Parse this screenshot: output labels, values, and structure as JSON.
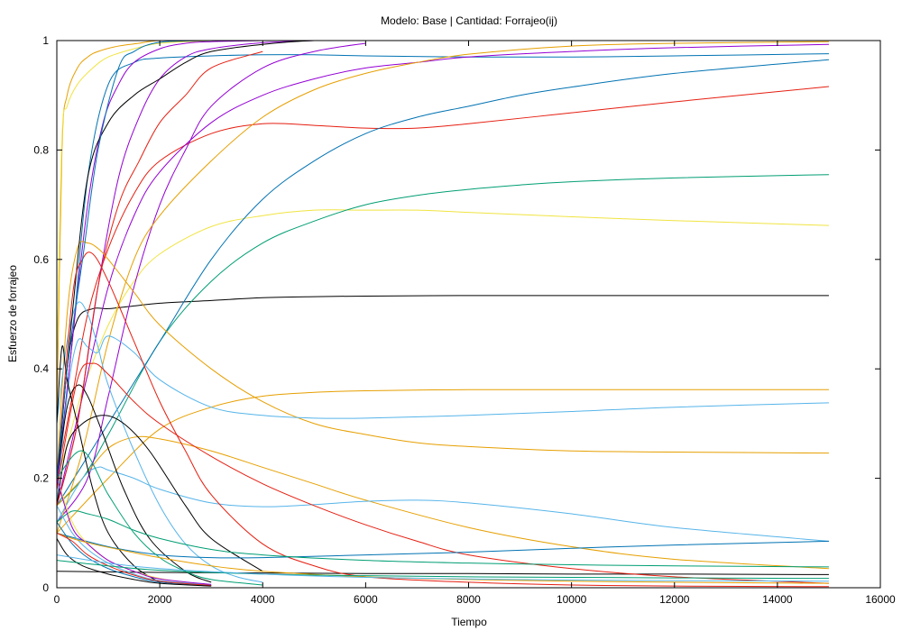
{
  "chart_data": {
    "type": "line",
    "title": "Modelo: Base | Cantidad: Forrajeo(ij)",
    "xlabel": "Tiempo",
    "ylabel": "Esfuerzo de forrajeo",
    "xlim": [
      0,
      16000
    ],
    "ylim": [
      0,
      1
    ],
    "xticks": [
      0,
      2000,
      4000,
      6000,
      8000,
      10000,
      12000,
      14000,
      16000
    ],
    "xtick_labels": [
      "0",
      "2000",
      "4000",
      "6000",
      "8000",
      "10000",
      "12000",
      "14000",
      "16000"
    ],
    "yticks": [
      0,
      0.2,
      0.4,
      0.6,
      0.8,
      1
    ],
    "ytick_labels": [
      "0",
      "0.2",
      "0.4",
      "0.6",
      "0.8",
      "1"
    ],
    "grid": false,
    "legend": "none",
    "palette": [
      "#9400d3",
      "#009e73",
      "#56b4e9",
      "#e69f00",
      "#f0e442",
      "#0072b2",
      "#e51e10",
      "#000000"
    ],
    "series": [
      {
        "color": "#000000",
        "x": [
          0,
          200,
          400,
          700,
          1000,
          1500,
          2000,
          3000,
          4000,
          5000,
          6000,
          8000,
          10000,
          12000,
          15000
        ],
        "y": [
          0.18,
          0.4,
          0.49,
          0.51,
          0.51,
          0.515,
          0.52,
          0.525,
          0.53,
          0.532,
          0.533,
          0.534,
          0.534,
          0.534,
          0.534
        ]
      },
      {
        "color": "#f0e442",
        "x": [
          0,
          200,
          500,
          1000,
          1500,
          2000,
          3000,
          4000,
          5000,
          6000,
          7000,
          8000,
          10000,
          12000,
          15000
        ],
        "y": [
          0.2,
          0.26,
          0.36,
          0.48,
          0.56,
          0.61,
          0.66,
          0.68,
          0.69,
          0.69,
          0.69,
          0.686,
          0.678,
          0.671,
          0.662
        ]
      },
      {
        "color": "#009e73",
        "x": [
          0,
          500,
          1000,
          2000,
          3000,
          4000,
          5000,
          6000,
          7000,
          8000,
          9000,
          10000,
          12000,
          15000
        ],
        "y": [
          0.15,
          0.2,
          0.28,
          0.45,
          0.56,
          0.63,
          0.67,
          0.7,
          0.717,
          0.728,
          0.736,
          0.742,
          0.749,
          0.755
        ]
      },
      {
        "color": "#e51e10",
        "x": [
          0,
          300,
          600,
          1000,
          1500,
          2000,
          3000,
          4000,
          5000,
          6000,
          7000,
          8000,
          10000,
          12000,
          15000
        ],
        "y": [
          0.2,
          0.35,
          0.5,
          0.62,
          0.72,
          0.78,
          0.83,
          0.848,
          0.845,
          0.84,
          0.84,
          0.848,
          0.868,
          0.888,
          0.916
        ]
      },
      {
        "color": "#0072b2",
        "x": [
          0,
          1000,
          2000,
          3000,
          4000,
          5000,
          6000,
          7000,
          8000,
          9000,
          10000,
          12000,
          15000
        ],
        "y": [
          0.15,
          0.3,
          0.45,
          0.6,
          0.71,
          0.78,
          0.83,
          0.86,
          0.88,
          0.9,
          0.915,
          0.94,
          0.965
        ]
      },
      {
        "color": "#0072b2",
        "x": [
          0,
          300,
          600,
          1000,
          1500,
          2000,
          3000,
          4000,
          5000,
          6000,
          8000,
          10000,
          12000,
          15000
        ],
        "y": [
          0.2,
          0.45,
          0.75,
          0.92,
          0.96,
          0.968,
          0.972,
          0.974,
          0.974,
          0.972,
          0.97,
          0.97,
          0.972,
          0.976
        ]
      },
      {
        "color": "#9400d3",
        "x": [
          0,
          500,
          1000,
          1500,
          2000,
          3000,
          4000,
          5000,
          6000,
          7000,
          8000,
          10000,
          12000,
          15000
        ],
        "y": [
          0.15,
          0.35,
          0.55,
          0.68,
          0.76,
          0.85,
          0.9,
          0.93,
          0.95,
          0.96,
          0.97,
          0.98,
          0.987,
          0.993
        ]
      },
      {
        "color": "#9400d3",
        "x": [
          0,
          600,
          1000,
          1500,
          2000,
          2500,
          3000,
          4000,
          5000,
          6000
        ],
        "y": [
          0.12,
          0.2,
          0.35,
          0.55,
          0.7,
          0.8,
          0.88,
          0.95,
          0.98,
          0.995
        ]
      },
      {
        "color": "#9400d3",
        "x": [
          0,
          400,
          800,
          1200,
          1600,
          2000,
          2500,
          3000,
          4000,
          5000
        ],
        "y": [
          0.15,
          0.3,
          0.55,
          0.75,
          0.86,
          0.93,
          0.97,
          0.985,
          0.996,
          1.0
        ]
      },
      {
        "color": "#9400d3",
        "x": [
          0,
          300,
          600,
          900,
          1200,
          1500,
          2000,
          2500,
          3000,
          4000
        ],
        "y": [
          0.18,
          0.45,
          0.7,
          0.85,
          0.92,
          0.96,
          0.985,
          0.995,
          0.998,
          1.0
        ]
      },
      {
        "color": "#e69f00",
        "x": [
          0,
          500,
          1000,
          1500,
          2000,
          3000,
          4000,
          5000,
          6000,
          7000,
          8000,
          10000,
          12000,
          15000
        ],
        "y": [
          0.1,
          0.25,
          0.45,
          0.6,
          0.68,
          0.78,
          0.86,
          0.91,
          0.94,
          0.96,
          0.975,
          0.99,
          0.995,
          0.998
        ]
      },
      {
        "color": "#e69f00",
        "x": [
          0,
          1000,
          2000,
          3000,
          4000,
          5000,
          6000,
          8000,
          10000,
          12000,
          15000
        ],
        "y": [
          0.1,
          0.2,
          0.29,
          0.33,
          0.35,
          0.357,
          0.36,
          0.362,
          0.362,
          0.362,
          0.362
        ]
      },
      {
        "color": "#e69f00",
        "x": [
          0,
          200,
          400,
          600,
          800,
          1000,
          1500,
          2000,
          3000,
          4000,
          5000,
          6000,
          7000,
          8000,
          10000,
          12000,
          15000
        ],
        "y": [
          0.2,
          0.5,
          0.62,
          0.63,
          0.62,
          0.6,
          0.54,
          0.48,
          0.4,
          0.34,
          0.3,
          0.28,
          0.265,
          0.258,
          0.25,
          0.248,
          0.246
        ]
      },
      {
        "color": "#e69f00",
        "x": [
          0,
          500,
          1000,
          1500,
          2000,
          3000,
          4000,
          5000,
          6000,
          8000,
          10000,
          12000,
          15000
        ],
        "y": [
          0.15,
          0.2,
          0.255,
          0.275,
          0.272,
          0.25,
          0.22,
          0.19,
          0.16,
          0.11,
          0.075,
          0.052,
          0.035
        ]
      },
      {
        "color": "#e69f00",
        "x": [
          0,
          100,
          200,
          400,
          600,
          800,
          1200,
          1600,
          2000,
          3000
        ],
        "y": [
          0.3,
          0.8,
          0.9,
          0.95,
          0.97,
          0.98,
          0.99,
          0.995,
          1.0,
          1.0
        ]
      },
      {
        "color": "#f0e442",
        "x": [
          0,
          100,
          200,
          400,
          700,
          1000,
          1500,
          2000,
          3000
        ],
        "y": [
          0.4,
          0.82,
          0.88,
          0.92,
          0.95,
          0.97,
          0.985,
          0.995,
          1.0
        ]
      },
      {
        "color": "#56b4e9",
        "x": [
          0,
          200,
          400,
          600,
          800,
          1000,
          1500,
          2000,
          3000,
          4000,
          5000,
          6000,
          8000,
          10000,
          12000,
          15000
        ],
        "y": [
          0.15,
          0.35,
          0.45,
          0.44,
          0.43,
          0.46,
          0.43,
          0.38,
          0.33,
          0.315,
          0.31,
          0.31,
          0.315,
          0.322,
          0.33,
          0.338
        ]
      },
      {
        "color": "#56b4e9",
        "x": [
          0,
          200,
          400,
          600,
          800,
          1000,
          1500,
          2000,
          2500,
          3000,
          3500,
          4000
        ],
        "y": [
          0.3,
          0.45,
          0.52,
          0.5,
          0.44,
          0.37,
          0.25,
          0.15,
          0.08,
          0.04,
          0.02,
          0.01
        ]
      },
      {
        "color": "#56b4e9",
        "x": [
          0,
          500,
          800,
          1000,
          1500,
          2000,
          3000,
          4000,
          5000,
          6000,
          7000,
          8000,
          10000,
          12000,
          15000
        ],
        "y": [
          0.12,
          0.2,
          0.22,
          0.215,
          0.2,
          0.18,
          0.155,
          0.148,
          0.152,
          0.158,
          0.16,
          0.155,
          0.135,
          0.11,
          0.085
        ]
      },
      {
        "color": "#000000",
        "x": [
          0,
          200,
          500,
          900,
          1300,
          1800,
          2500,
          3000,
          4000
        ],
        "y": [
          0.15,
          0.26,
          0.3,
          0.315,
          0.3,
          0.25,
          0.15,
          0.09,
          0.03
        ]
      },
      {
        "color": "#000000",
        "x": [
          0,
          200,
          400,
          600,
          900,
          1300,
          1800,
          2500,
          3000
        ],
        "y": [
          0.2,
          0.33,
          0.37,
          0.35,
          0.28,
          0.18,
          0.09,
          0.03,
          0.01
        ]
      },
      {
        "color": "#000000",
        "x": [
          0,
          100,
          200,
          400,
          700,
          1000,
          1500,
          2000
        ],
        "y": [
          0.3,
          0.44,
          0.38,
          0.3,
          0.18,
          0.1,
          0.04,
          0.01
        ]
      },
      {
        "color": "#000000",
        "x": [
          0,
          300,
          600,
          1000,
          1500,
          2000,
          2500,
          3000,
          4000,
          5000,
          6000
        ],
        "y": [
          0.2,
          0.5,
          0.75,
          0.85,
          0.9,
          0.93,
          0.96,
          0.98,
          0.993,
          1.0,
          1.0
        ]
      },
      {
        "color": "#000000",
        "x": [
          0,
          2000,
          4000,
          6000,
          8000,
          10000,
          12000,
          15000
        ],
        "y": [
          0.03,
          0.028,
          0.027,
          0.026,
          0.026,
          0.025,
          0.025,
          0.024
        ]
      },
      {
        "color": "#e51e10",
        "x": [
          0,
          300,
          500,
          700,
          1000,
          1500,
          2000,
          2500,
          3000,
          4000,
          5000,
          6000,
          8000,
          10000,
          12000,
          15000
        ],
        "y": [
          0.2,
          0.53,
          0.6,
          0.61,
          0.56,
          0.45,
          0.34,
          0.25,
          0.17,
          0.08,
          0.04,
          0.02,
          0.01,
          0.005,
          0.003,
          0.002
        ]
      },
      {
        "color": "#e51e10",
        "x": [
          0,
          400,
          700,
          1000,
          1500,
          2000,
          3000,
          4000,
          5000,
          6000,
          7000,
          8000,
          10000,
          12000,
          15000
        ],
        "y": [
          0.18,
          0.38,
          0.41,
          0.39,
          0.34,
          0.3,
          0.24,
          0.19,
          0.15,
          0.115,
          0.085,
          0.06,
          0.035,
          0.02,
          0.008
        ]
      },
      {
        "color": "#e51e10",
        "x": [
          0,
          400,
          800,
          1200,
          1600,
          2000,
          2500,
          3000,
          4000
        ],
        "y": [
          0.15,
          0.3,
          0.55,
          0.7,
          0.78,
          0.85,
          0.9,
          0.95,
          0.98
        ]
      },
      {
        "color": "#0072b2",
        "x": [
          0,
          200,
          500,
          800,
          1200,
          1500,
          2000,
          3000
        ],
        "y": [
          0.2,
          0.4,
          0.6,
          0.8,
          0.95,
          0.98,
          0.997,
          1.0
        ]
      },
      {
        "color": "#0072b2",
        "x": [
          0,
          1000,
          2000,
          3000,
          4000,
          6000,
          8000,
          10000,
          12000,
          15000
        ],
        "y": [
          0.1,
          0.075,
          0.06,
          0.055,
          0.055,
          0.06,
          0.065,
          0.072,
          0.078,
          0.085
        ]
      },
      {
        "color": "#009e73",
        "x": [
          0,
          300,
          600,
          1000,
          1500,
          2000,
          3000,
          4000,
          6000,
          8000,
          10000,
          12000,
          15000
        ],
        "y": [
          0.12,
          0.14,
          0.135,
          0.125,
          0.105,
          0.09,
          0.07,
          0.06,
          0.05,
          0.045,
          0.042,
          0.04,
          0.038
        ]
      },
      {
        "color": "#009e73",
        "x": [
          0,
          500,
          1000,
          1500,
          2000,
          2500,
          3000,
          4000
        ],
        "y": [
          0.2,
          0.25,
          0.17,
          0.1,
          0.055,
          0.03,
          0.015,
          0.005
        ]
      },
      {
        "color": "#f0e442",
        "x": [
          0,
          300,
          600,
          1000,
          1500,
          2000,
          2500,
          3000
        ],
        "y": [
          0.2,
          0.12,
          0.08,
          0.05,
          0.03,
          0.017,
          0.01,
          0.005
        ]
      },
      {
        "color": "#56b4e9",
        "x": [
          0,
          300,
          600,
          1000,
          1500,
          2000,
          3000
        ],
        "y": [
          0.15,
          0.1,
          0.07,
          0.045,
          0.025,
          0.013,
          0.005
        ]
      },
      {
        "color": "#9400d3",
        "x": [
          0,
          300,
          600,
          1000,
          1500,
          2000,
          3000
        ],
        "y": [
          0.2,
          0.11,
          0.08,
          0.05,
          0.03,
          0.016,
          0.006
        ]
      },
      {
        "color": "#e69f00",
        "x": [
          0,
          300,
          700,
          1200,
          2000,
          3000,
          4000,
          6000,
          8000,
          10000,
          12000,
          15000
        ],
        "y": [
          0.1,
          0.09,
          0.08,
          0.07,
          0.055,
          0.04,
          0.03,
          0.02,
          0.015,
          0.012,
          0.01,
          0.008
        ]
      },
      {
        "color": "#0072b2",
        "x": [
          0,
          300,
          600,
          1000,
          1500,
          2000,
          3000
        ],
        "y": [
          0.12,
          0.08,
          0.055,
          0.035,
          0.02,
          0.01,
          0.004
        ]
      },
      {
        "color": "#e51e10",
        "x": [
          0,
          300,
          600,
          1000,
          1500,
          2000,
          3000
        ],
        "y": [
          0.1,
          0.085,
          0.06,
          0.04,
          0.023,
          0.012,
          0.004
        ]
      },
      {
        "color": "#000000",
        "x": [
          0,
          200,
          500,
          1000,
          1500,
          2000,
          3000
        ],
        "y": [
          0.09,
          0.06,
          0.04,
          0.025,
          0.015,
          0.008,
          0.003
        ]
      },
      {
        "color": "#009e73",
        "x": [
          0,
          1000,
          2000,
          4000,
          6000,
          8000,
          10000,
          12000,
          15000
        ],
        "y": [
          0.05,
          0.04,
          0.032,
          0.025,
          0.022,
          0.02,
          0.019,
          0.018,
          0.017
        ]
      },
      {
        "color": "#56b4e9",
        "x": [
          0,
          1000,
          2000,
          4000,
          6000,
          8000,
          10000,
          12000,
          15000
        ],
        "y": [
          0.06,
          0.045,
          0.035,
          0.025,
          0.019,
          0.016,
          0.014,
          0.013,
          0.012
        ]
      }
    ]
  }
}
